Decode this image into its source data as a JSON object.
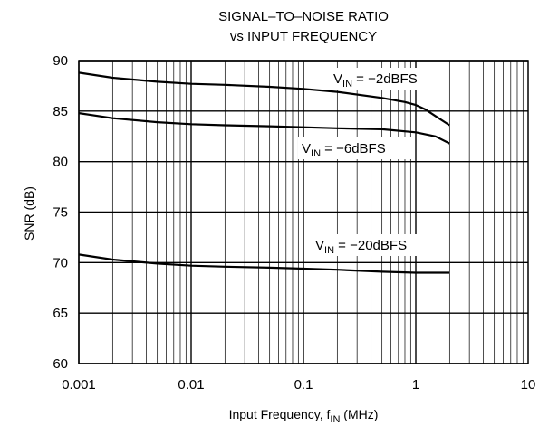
{
  "chart_data": {
    "type": "line",
    "title": "SIGNAL–TO–NOISE RATIO",
    "subtitle": "vs INPUT FREQUENCY",
    "xlabel_main": "Input Frequency, f",
    "xlabel_sub": "IN",
    "xlabel_unit": " (MHz)",
    "ylabel": "SNR (dB)",
    "xscale": "log",
    "xlim": [
      0.001,
      10
    ],
    "ylim": [
      60,
      90
    ],
    "x_ticks": [
      0.001,
      0.01,
      0.1,
      1,
      10
    ],
    "x_tick_labels": [
      "0.001",
      "0.01",
      "0.1",
      "1",
      "10"
    ],
    "y_ticks": [
      60,
      65,
      70,
      75,
      80,
      85,
      90
    ],
    "y_tick_labels": [
      "60",
      "65",
      "70",
      "75",
      "80",
      "85",
      "90"
    ],
    "grid": true,
    "line_color": "#000000",
    "grid_color": "#000000",
    "series": [
      {
        "name": "-2dBFS",
        "label_prefix": "V",
        "label_sub": "IN",
        "label_suffix": " = −2dBFS",
        "x": [
          0.001,
          0.002,
          0.005,
          0.01,
          0.02,
          0.05,
          0.1,
          0.2,
          0.5,
          0.8,
          1.0,
          1.2,
          1.5,
          2.0
        ],
        "y": [
          88.8,
          88.3,
          87.9,
          87.7,
          87.6,
          87.4,
          87.2,
          86.9,
          86.3,
          85.9,
          85.6,
          85.2,
          84.5,
          83.6
        ]
      },
      {
        "name": "-6dBFS",
        "label_prefix": "V",
        "label_sub": "IN",
        "label_suffix": " = −6dBFS",
        "x": [
          0.001,
          0.002,
          0.005,
          0.01,
          0.02,
          0.05,
          0.1,
          0.2,
          0.5,
          1.0,
          1.5,
          2.0
        ],
        "y": [
          84.8,
          84.3,
          83.9,
          83.7,
          83.6,
          83.5,
          83.4,
          83.3,
          83.2,
          82.9,
          82.5,
          81.8
        ]
      },
      {
        "name": "-20dBFS",
        "label_prefix": "V",
        "label_sub": "IN",
        "label_suffix": " = −20dBFS",
        "x": [
          0.001,
          0.002,
          0.005,
          0.01,
          0.02,
          0.05,
          0.1,
          0.2,
          0.5,
          1.0,
          2.0
        ],
        "y": [
          70.8,
          70.3,
          69.9,
          69.7,
          69.6,
          69.5,
          69.4,
          69.3,
          69.1,
          69.0,
          69.0
        ]
      }
    ]
  }
}
